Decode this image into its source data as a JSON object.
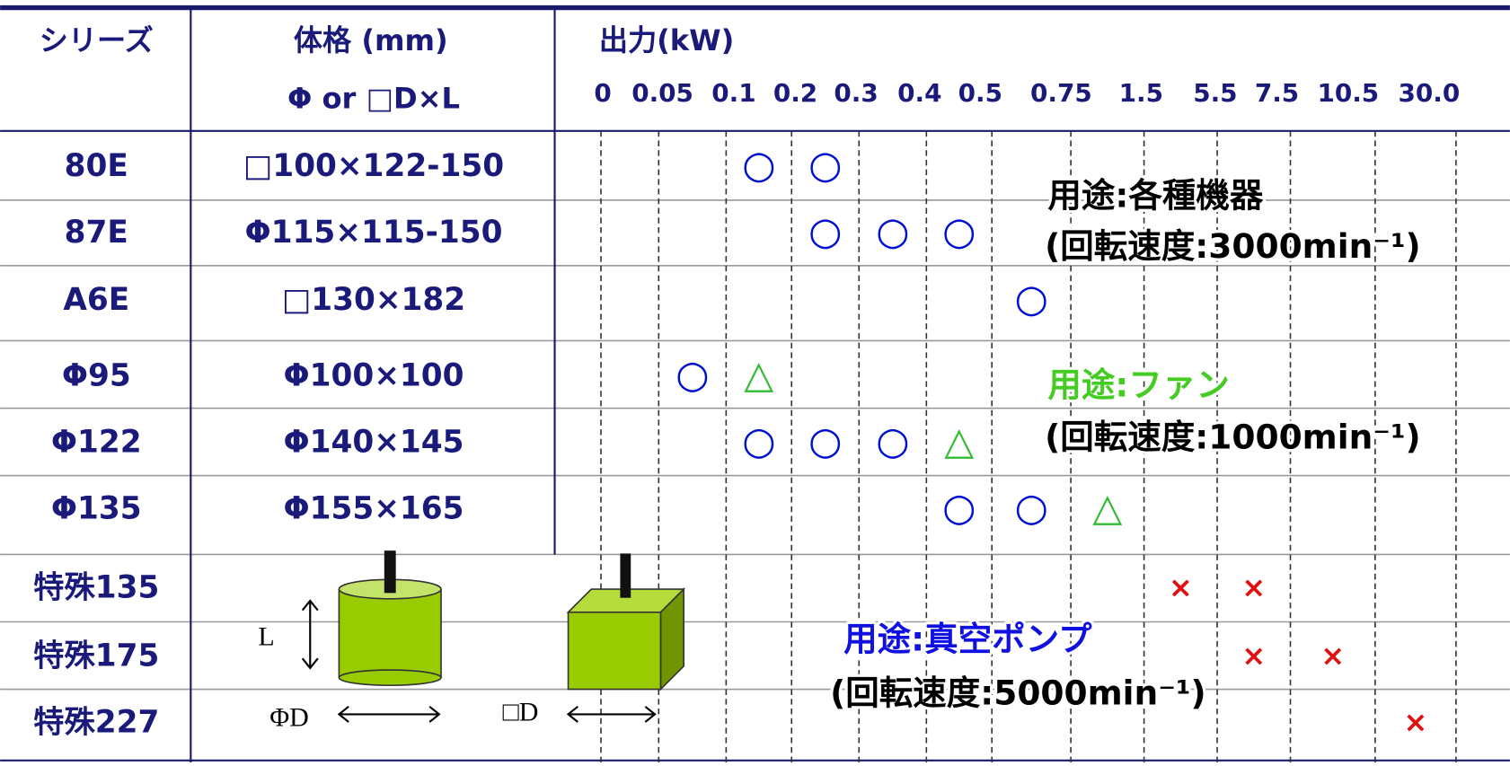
{
  "header": {
    "series": "シリーズ",
    "size": "体格 (mm)",
    "size_sub": "Φ or □D×L",
    "output": "出力(kW)",
    "output_ticks": [
      "0",
      "0.05",
      "0.1",
      "0.2",
      "0.3",
      "0.4",
      "0.5",
      "0.75",
      "1.5",
      "5.5",
      "7.5",
      "10.5",
      "30.0"
    ]
  },
  "rows": [
    {
      "series": "80E",
      "size": "□100×122-150",
      "cells": [
        null,
        null,
        "○",
        "○",
        null,
        null,
        null,
        null,
        null,
        null,
        null,
        null
      ]
    },
    {
      "series": "87E",
      "size": "Φ115×115-150",
      "cells": [
        null,
        null,
        null,
        "○",
        "○",
        "○",
        null,
        null,
        null,
        null,
        null,
        null
      ]
    },
    {
      "series": "A6E",
      "size": "□130×182",
      "cells": [
        null,
        null,
        null,
        null,
        null,
        null,
        "○",
        null,
        null,
        null,
        null,
        null
      ]
    },
    {
      "series": "Φ95",
      "size": "Φ100×100",
      "cells": [
        null,
        "○",
        "△",
        null,
        null,
        null,
        null,
        null,
        null,
        null,
        null,
        null
      ]
    },
    {
      "series": "Φ122",
      "size": "Φ140×145",
      "cells": [
        null,
        null,
        "○",
        "○",
        "○",
        "△",
        null,
        null,
        null,
        null,
        null,
        null
      ]
    },
    {
      "series": "Φ135",
      "size": "Φ155×165",
      "cells": [
        null,
        null,
        null,
        null,
        null,
        "○",
        "○",
        "△",
        null,
        null,
        null,
        null
      ]
    },
    {
      "series": "特殊135",
      "cells": [
        null,
        null,
        null,
        null,
        null,
        null,
        null,
        null,
        "×",
        "×",
        null,
        null
      ]
    },
    {
      "series": "特殊175",
      "cells": [
        null,
        null,
        null,
        null,
        null,
        null,
        null,
        null,
        null,
        "×",
        "×",
        null
      ]
    },
    {
      "series": "特殊227",
      "cells": [
        null,
        null,
        null,
        null,
        null,
        null,
        null,
        null,
        null,
        null,
        null,
        "×"
      ]
    }
  ],
  "annotations": [
    {
      "use": "用途:各種機器",
      "speed": "(回転速度:3000min⁻¹)"
    },
    {
      "use": "用途:ファン",
      "speed": "(回転速度:1000min⁻¹)"
    },
    {
      "use": "用途:真空ポンプ",
      "speed": "(回転速度:5000min⁻¹)"
    }
  ],
  "diagram": {
    "l": "L",
    "phi_d": "ΦD",
    "square_d": "□D"
  }
}
